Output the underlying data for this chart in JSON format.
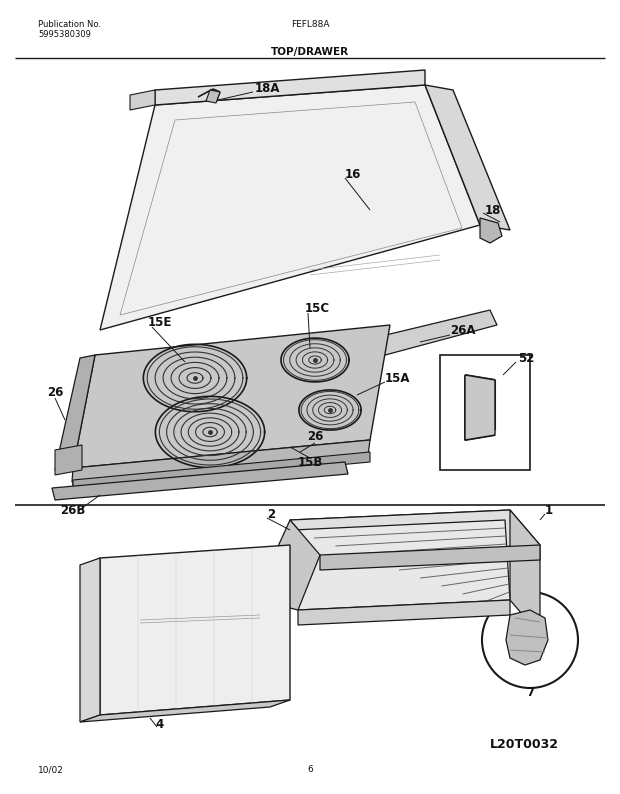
{
  "title": "TOP/DRAWER",
  "pub_no_label": "Publication No.",
  "pub_no": "5995380309",
  "model": "FEFL88A",
  "date": "10/02",
  "page": "6",
  "diagram_id": "L20T0032",
  "bg_color": "#ffffff",
  "line_color": "#1a1a1a",
  "fig_width": 6.2,
  "fig_height": 7.94,
  "dpi": 100
}
